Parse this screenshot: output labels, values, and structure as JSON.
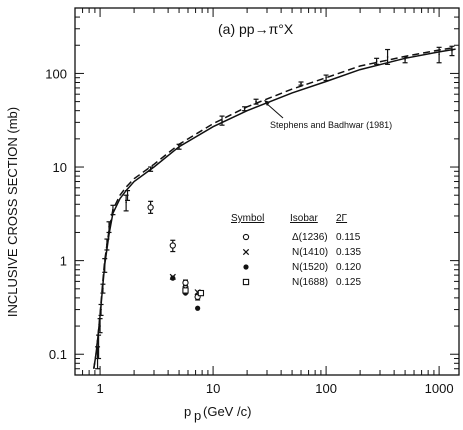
{
  "chart_data": {
    "type": "scatter",
    "title": "(a) pp→π°X",
    "xlabel": "(GeV /c)",
    "xlabel_main": "p",
    "xlabel_sub": "p",
    "ylabel": "INCLUSIVE CROSS SECTION (mb)",
    "xscale": "log",
    "yscale": "log",
    "xlim": [
      0.6,
      1500
    ],
    "ylim": [
      0.06,
      500
    ],
    "x_ticks": [
      {
        "v": 1,
        "label": "1"
      },
      {
        "v": 10,
        "label": "10"
      },
      {
        "v": 100,
        "label": "100"
      },
      {
        "v": 1000,
        "label": "1000"
      }
    ],
    "y_ticks": [
      {
        "v": 0.1,
        "label": "0.1"
      },
      {
        "v": 1,
        "label": "1"
      },
      {
        "v": 10,
        "label": "10"
      },
      {
        "v": 100,
        "label": "100"
      }
    ],
    "grid": false,
    "annotation": "Stephens and Badhwar (1981)",
    "series": [
      {
        "marker": "errorbar",
        "points": [
          {
            "x": 0.95,
            "y": 0.09,
            "lo": 0.07,
            "hi": 0.12
          },
          {
            "x": 0.97,
            "y": 0.12,
            "lo": 0.09,
            "hi": 0.16
          },
          {
            "x": 1.0,
            "y": 0.2,
            "lo": 0.17,
            "hi": 0.24
          },
          {
            "x": 1.02,
            "y": 0.3,
            "lo": 0.26,
            "hi": 0.34
          },
          {
            "x": 1.06,
            "y": 0.5,
            "lo": 0.45,
            "hi": 0.56
          },
          {
            "x": 1.1,
            "y": 0.9,
            "lo": 0.75,
            "hi": 1.05
          },
          {
            "x": 1.15,
            "y": 1.5,
            "lo": 1.3,
            "hi": 1.7
          },
          {
            "x": 1.2,
            "y": 2.3,
            "lo": 2.0,
            "hi": 2.6
          },
          {
            "x": 1.3,
            "y": 3.5,
            "lo": 3.1,
            "hi": 3.9
          },
          {
            "x": 1.7,
            "y": 4.2,
            "lo": 3.4,
            "hi": 5.0
          },
          {
            "x": 1.75,
            "y": 5.0,
            "lo": 4.4,
            "hi": 5.6
          },
          {
            "x": 2.8,
            "y": 9.5,
            "lo": 9.0,
            "hi": 10.0
          },
          {
            "x": 5.0,
            "y": 16.5,
            "lo": 15.5,
            "hi": 17.5
          },
          {
            "x": 12,
            "y": 31,
            "lo": 28,
            "hi": 35
          },
          {
            "x": 19,
            "y": 42,
            "lo": 40,
            "hi": 44
          },
          {
            "x": 24,
            "y": 50,
            "lo": 47,
            "hi": 53
          },
          {
            "x": 60,
            "y": 78,
            "lo": 75,
            "hi": 81
          },
          {
            "x": 100,
            "y": 90,
            "lo": 84,
            "hi": 96
          },
          {
            "x": 280,
            "y": 135,
            "lo": 125,
            "hi": 145
          },
          {
            "x": 350,
            "y": 150,
            "lo": 125,
            "hi": 180
          },
          {
            "x": 500,
            "y": 140,
            "lo": 130,
            "hi": 150
          },
          {
            "x": 1000,
            "y": 160,
            "lo": 130,
            "hi": 190
          },
          {
            "x": 1300,
            "y": 175,
            "lo": 155,
            "hi": 195
          }
        ]
      },
      {
        "marker": "open-circle",
        "points": [
          {
            "x": 2.8,
            "y": 3.7,
            "lo": 3.2,
            "hi": 4.3
          },
          {
            "x": 4.4,
            "y": 1.45,
            "lo": 1.25,
            "hi": 1.65
          },
          {
            "x": 5.7,
            "y": 0.58,
            "lo": 0.54,
            "hi": 0.62
          },
          {
            "x": 7.3,
            "y": 0.41,
            "lo": 0.38,
            "hi": 0.44
          }
        ]
      },
      {
        "marker": "cross",
        "points": [
          {
            "x": 4.4,
            "y": 0.67
          },
          {
            "x": 5.7,
            "y": 0.5
          },
          {
            "x": 7.3,
            "y": 0.46
          }
        ]
      },
      {
        "marker": "filled-circle",
        "points": [
          {
            "x": 4.4,
            "y": 0.65
          },
          {
            "x": 5.7,
            "y": 0.45
          },
          {
            "x": 7.3,
            "y": 0.31
          }
        ]
      },
      {
        "marker": "open-square",
        "points": [
          {
            "x": 5.7,
            "y": 0.48
          },
          {
            "x": 7.8,
            "y": 0.45
          }
        ]
      }
    ],
    "curves": [
      {
        "style": "solid",
        "x": [
          0.88,
          0.92,
          0.96,
          1.0,
          1.05,
          1.1,
          1.2,
          1.3,
          1.5,
          1.7,
          2,
          3,
          5,
          10,
          20,
          50,
          100,
          200,
          500,
          1000,
          1400
        ],
        "y": [
          0.07,
          0.1,
          0.16,
          0.26,
          0.5,
          0.9,
          1.9,
          3.2,
          4.6,
          5.6,
          7.0,
          10.0,
          16.5,
          27,
          40,
          62,
          82,
          110,
          145,
          170,
          182
        ]
      },
      {
        "style": "dashed",
        "x": [
          0.88,
          0.92,
          0.96,
          1.0,
          1.05,
          1.1,
          1.2,
          1.3,
          1.5,
          1.7,
          2,
          3,
          5,
          10,
          20,
          50,
          100,
          200,
          500,
          1000,
          1400
        ],
        "y": [
          0.07,
          0.1,
          0.16,
          0.27,
          0.55,
          1.0,
          2.1,
          3.5,
          5.0,
          6.1,
          7.5,
          10.7,
          17.5,
          29,
          44,
          68,
          90,
          120,
          152,
          178,
          190
        ]
      }
    ],
    "legend": {
      "headers": [
        "Symbol",
        "Isobar",
        "2Γ"
      ],
      "rows": [
        {
          "marker": "open-circle",
          "isobar": "Δ(1236)",
          "width": "0.115"
        },
        {
          "marker": "cross",
          "isobar": "N(1410)",
          "width": "0.135"
        },
        {
          "marker": "filled-circle",
          "isobar": "N(1520)",
          "width": "0.120"
        },
        {
          "marker": "open-square",
          "isobar": "N(1688)",
          "width": "0.125"
        }
      ]
    }
  }
}
